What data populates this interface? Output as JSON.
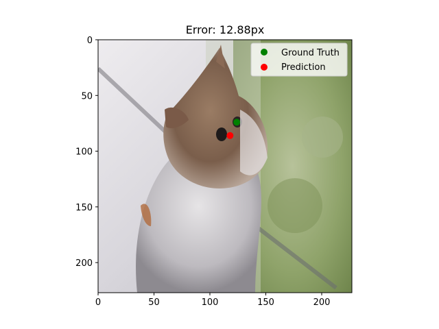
{
  "chart_data": {
    "type": "scatter",
    "title": "Error: 12.88px",
    "background": "photo-cat-looking-up",
    "xlim": [
      0,
      227
    ],
    "ylim": [
      227,
      0
    ],
    "x_ticks": [
      0,
      50,
      100,
      150,
      200
    ],
    "y_ticks": [
      0,
      50,
      100,
      150,
      200
    ],
    "grid": false,
    "legend_position": "top-right",
    "series": [
      {
        "name": "Ground Truth",
        "color": "#008000",
        "points": [
          {
            "x": 124,
            "y": 74
          }
        ]
      },
      {
        "name": "Prediction",
        "color": "#ff0000",
        "points": [
          {
            "x": 118,
            "y": 86
          }
        ]
      }
    ]
  }
}
